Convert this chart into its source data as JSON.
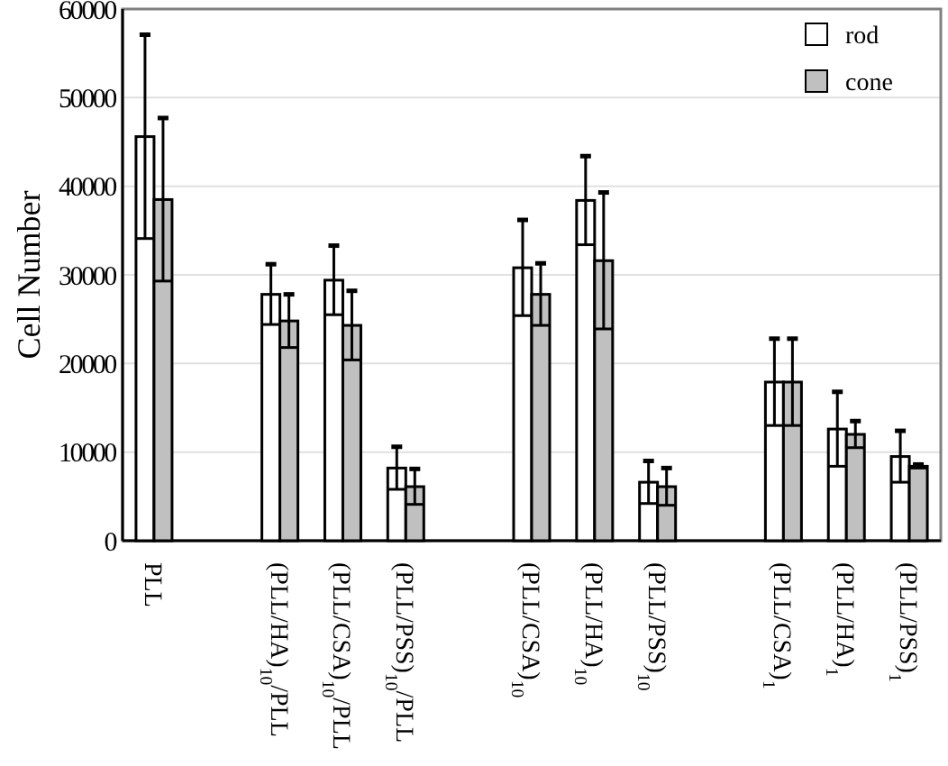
{
  "chart_data": {
    "type": "bar",
    "ylabel": "Cell Number",
    "categories": [
      "PLL",
      null,
      "(PLL/HA)$_{10}$/PLL",
      "(PLL/CSA)$_{10}$/PLL",
      "(PLL/PSS)$_{10}$/PLL",
      null,
      "(PLL/CSA)$_{10}$",
      "(PLL/HA)$_{10}$",
      "(PLL/PSS)$_{10}$",
      null,
      "(PLL/CSA)$_{1}$",
      "(PLL/HA)$_{1}$",
      "(PLL/PSS)$_{1}$"
    ],
    "series": [
      {
        "name": "rod",
        "color": "#ffffff",
        "values": [
          45600,
          null,
          27800,
          29400,
          8200,
          null,
          30800,
          38400,
          6600,
          null,
          17900,
          12600,
          9500
        ],
        "errors": [
          11500,
          null,
          3400,
          3900,
          2400,
          null,
          5400,
          5000,
          2400,
          null,
          4900,
          4200,
          2900
        ]
      },
      {
        "name": "cone",
        "color": "#c0c0c0",
        "values": [
          38500,
          null,
          24800,
          24300,
          6100,
          null,
          27800,
          31600,
          6100,
          null,
          17900,
          12000,
          8400
        ],
        "errors": [
          9200,
          null,
          3000,
          3900,
          2000,
          null,
          3500,
          7700,
          2100,
          null,
          4900,
          1500,
          200
        ]
      }
    ],
    "ylim": [
      0,
      60000
    ],
    "yticks": [
      0,
      10000,
      20000,
      30000,
      40000,
      50000,
      60000
    ],
    "grid": "y",
    "legend": "top right"
  }
}
